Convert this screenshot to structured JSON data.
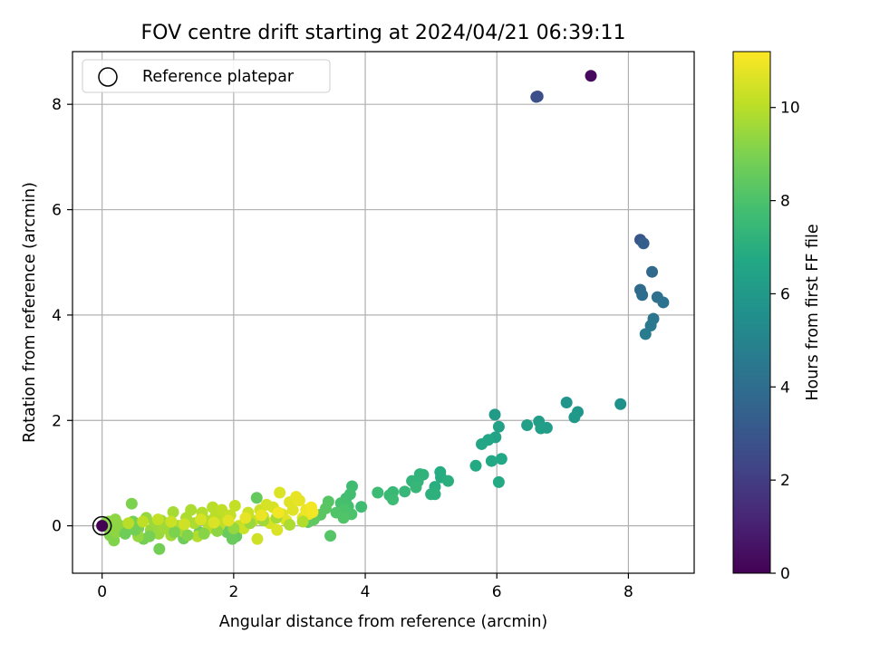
{
  "chart_data": {
    "type": "scatter",
    "title": "FOV centre drift starting at 2024/04/21 06:39:11",
    "xlabel": "Angular distance from reference (arcmin)",
    "ylabel": "Rotation from reference (arcmin)",
    "colorbar_label": "Hours from first FF file",
    "xlim": [
      -0.45,
      9.0
    ],
    "ylim": [
      -0.9,
      9.0
    ],
    "clim": [
      0,
      11.2
    ],
    "x_ticks": [
      0,
      2,
      4,
      6,
      8
    ],
    "y_ticks": [
      0,
      2,
      4,
      6,
      8
    ],
    "colorbar_ticks": [
      0,
      2,
      4,
      6,
      8,
      10
    ],
    "grid": true,
    "colormap": "viridis",
    "legend": {
      "position": "top-left",
      "entries": [
        "Reference platepar"
      ]
    },
    "reference_point": {
      "x": 0,
      "y": 0,
      "c": 0
    },
    "points": [
      {
        "x": 7.43,
        "y": 8.54,
        "c": 0.3
      },
      {
        "x": 6.62,
        "y": 8.15,
        "c": 2.6
      },
      {
        "x": 6.6,
        "y": 8.14,
        "c": 2.7
      },
      {
        "x": 8.18,
        "y": 5.43,
        "c": 3.0
      },
      {
        "x": 8.23,
        "y": 5.36,
        "c": 3.3
      },
      {
        "x": 8.36,
        "y": 4.82,
        "c": 3.8
      },
      {
        "x": 8.18,
        "y": 4.48,
        "c": 3.9
      },
      {
        "x": 8.21,
        "y": 4.38,
        "c": 4.0
      },
      {
        "x": 8.44,
        "y": 4.34,
        "c": 4.1
      },
      {
        "x": 8.53,
        "y": 4.24,
        "c": 4.2
      },
      {
        "x": 8.38,
        "y": 3.93,
        "c": 4.4
      },
      {
        "x": 8.34,
        "y": 3.8,
        "c": 4.5
      },
      {
        "x": 8.26,
        "y": 3.64,
        "c": 4.6
      },
      {
        "x": 7.88,
        "y": 2.31,
        "c": 5.6
      },
      {
        "x": 7.06,
        "y": 2.34,
        "c": 5.8
      },
      {
        "x": 7.23,
        "y": 2.16,
        "c": 5.9
      },
      {
        "x": 7.18,
        "y": 2.06,
        "c": 6.0
      },
      {
        "x": 5.97,
        "y": 2.11,
        "c": 6.1
      },
      {
        "x": 6.64,
        "y": 1.98,
        "c": 6.2
      },
      {
        "x": 6.67,
        "y": 1.85,
        "c": 6.3
      },
      {
        "x": 6.76,
        "y": 1.86,
        "c": 6.2
      },
      {
        "x": 6.46,
        "y": 1.91,
        "c": 6.3
      },
      {
        "x": 6.03,
        "y": 1.88,
        "c": 6.4
      },
      {
        "x": 5.98,
        "y": 1.68,
        "c": 6.5
      },
      {
        "x": 5.87,
        "y": 1.63,
        "c": 6.6
      },
      {
        "x": 5.77,
        "y": 1.55,
        "c": 6.6
      },
      {
        "x": 6.07,
        "y": 1.27,
        "c": 6.7
      },
      {
        "x": 5.92,
        "y": 1.23,
        "c": 6.7
      },
      {
        "x": 5.68,
        "y": 1.14,
        "c": 6.8
      },
      {
        "x": 6.03,
        "y": 0.83,
        "c": 6.8
      },
      {
        "x": 5.14,
        "y": 1.02,
        "c": 6.9
      },
      {
        "x": 5.15,
        "y": 0.92,
        "c": 6.9
      },
      {
        "x": 5.26,
        "y": 0.85,
        "c": 7.0
      },
      {
        "x": 5.06,
        "y": 0.74,
        "c": 7.0
      },
      {
        "x": 5.0,
        "y": 0.6,
        "c": 7.1
      },
      {
        "x": 5.06,
        "y": 0.6,
        "c": 7.1
      },
      {
        "x": 4.88,
        "y": 0.97,
        "c": 7.2
      },
      {
        "x": 4.83,
        "y": 0.98,
        "c": 7.2
      },
      {
        "x": 4.8,
        "y": 0.84,
        "c": 7.3
      },
      {
        "x": 4.71,
        "y": 0.85,
        "c": 7.3
      },
      {
        "x": 4.77,
        "y": 0.73,
        "c": 7.4
      },
      {
        "x": 4.6,
        "y": 0.65,
        "c": 7.4
      },
      {
        "x": 4.42,
        "y": 0.64,
        "c": 7.5
      },
      {
        "x": 4.37,
        "y": 0.58,
        "c": 7.5
      },
      {
        "x": 4.42,
        "y": 0.5,
        "c": 7.6
      },
      {
        "x": 4.19,
        "y": 0.63,
        "c": 7.6
      },
      {
        "x": 3.94,
        "y": 0.36,
        "c": 7.7
      },
      {
        "x": 3.8,
        "y": 0.75,
        "c": 7.7
      },
      {
        "x": 3.77,
        "y": 0.6,
        "c": 7.8
      },
      {
        "x": 3.71,
        "y": 0.52,
        "c": 7.8
      },
      {
        "x": 3.63,
        "y": 0.43,
        "c": 7.9
      },
      {
        "x": 3.74,
        "y": 0.37,
        "c": 7.9
      },
      {
        "x": 3.68,
        "y": 0.3,
        "c": 8.0
      },
      {
        "x": 3.79,
        "y": 0.22,
        "c": 8.0
      },
      {
        "x": 3.67,
        "y": 0.15,
        "c": 8.1
      },
      {
        "x": 3.56,
        "y": 0.25,
        "c": 8.1
      },
      {
        "x": 3.47,
        "y": -0.19,
        "c": 8.2
      },
      {
        "x": 3.44,
        "y": 0.46,
        "c": 8.2
      },
      {
        "x": 3.4,
        "y": 0.33,
        "c": 8.3
      },
      {
        "x": 3.32,
        "y": 0.21,
        "c": 8.3
      },
      {
        "x": 3.22,
        "y": 0.12,
        "c": 8.4
      },
      {
        "x": 3.13,
        "y": 0.07,
        "c": 8.4
      },
      {
        "x": 2.35,
        "y": 0.53,
        "c": 8.5
      },
      {
        "x": 2.04,
        "y": -0.2,
        "c": 8.5
      },
      {
        "x": 1.98,
        "y": -0.25,
        "c": 8.6
      },
      {
        "x": 1.9,
        "y": -0.12,
        "c": 8.6
      },
      {
        "x": 1.48,
        "y": -0.12,
        "c": 8.7
      },
      {
        "x": 1.24,
        "y": -0.24,
        "c": 8.7
      },
      {
        "x": 0.87,
        "y": -0.44,
        "c": 8.8
      },
      {
        "x": 0.63,
        "y": -0.25,
        "c": 8.8
      },
      {
        "x": 0.55,
        "y": -0.05,
        "c": 8.9
      },
      {
        "x": 0.47,
        "y": 0.08,
        "c": 8.9
      },
      {
        "x": 0.45,
        "y": 0.42,
        "c": 9.0
      },
      {
        "x": 0.3,
        "y": -0.1,
        "c": 9.0
      },
      {
        "x": 0.18,
        "y": -0.28,
        "c": 9.1
      },
      {
        "x": 0.12,
        "y": -0.18,
        "c": 9.1
      },
      {
        "x": 0.07,
        "y": -0.02,
        "c": 9.1
      },
      {
        "x": 0.05,
        "y": 0.05,
        "c": 9.2
      },
      {
        "x": 0.1,
        "y": 0.08,
        "c": 9.2
      },
      {
        "x": 0.15,
        "y": -0.06,
        "c": 9.2
      },
      {
        "x": 0.2,
        "y": 0.12,
        "c": 9.3
      },
      {
        "x": 0.22,
        "y": -0.12,
        "c": 9.3
      },
      {
        "x": 0.25,
        "y": 0.02,
        "c": 9.3
      },
      {
        "x": 0.55,
        "y": -0.2,
        "c": 9.4
      },
      {
        "x": 0.67,
        "y": 0.15,
        "c": 9.4
      },
      {
        "x": 0.74,
        "y": -0.08,
        "c": 9.4
      },
      {
        "x": 0.8,
        "y": 0.05,
        "c": 9.5
      },
      {
        "x": 0.86,
        "y": -0.15,
        "c": 9.5
      },
      {
        "x": 0.9,
        "y": 0.1,
        "c": 9.5
      },
      {
        "x": 0.95,
        "y": -0.05,
        "c": 9.6
      },
      {
        "x": 1.0,
        "y": 0.02,
        "c": 9.6
      },
      {
        "x": 1.05,
        "y": -0.18,
        "c": 9.6
      },
      {
        "x": 1.08,
        "y": 0.26,
        "c": 9.7
      },
      {
        "x": 1.15,
        "y": 0.0,
        "c": 9.7
      },
      {
        "x": 1.22,
        "y": -0.1,
        "c": 9.7
      },
      {
        "x": 1.28,
        "y": 0.15,
        "c": 9.8
      },
      {
        "x": 1.35,
        "y": 0.3,
        "c": 9.8
      },
      {
        "x": 1.4,
        "y": 0.05,
        "c": 9.8
      },
      {
        "x": 1.45,
        "y": -0.2,
        "c": 9.9
      },
      {
        "x": 1.52,
        "y": 0.25,
        "c": 9.9
      },
      {
        "x": 1.58,
        "y": 0.1,
        "c": 9.9
      },
      {
        "x": 1.62,
        "y": -0.05,
        "c": 10.0
      },
      {
        "x": 1.68,
        "y": 0.35,
        "c": 10.0
      },
      {
        "x": 1.72,
        "y": 0.18,
        "c": 10.0
      },
      {
        "x": 1.78,
        "y": 0.0,
        "c": 10.1
      },
      {
        "x": 1.82,
        "y": 0.3,
        "c": 10.1
      },
      {
        "x": 1.88,
        "y": 0.12,
        "c": 10.1
      },
      {
        "x": 1.95,
        "y": 0.2,
        "c": 10.2
      },
      {
        "x": 2.02,
        "y": 0.38,
        "c": 10.2
      },
      {
        "x": 2.08,
        "y": 0.0,
        "c": 10.2
      },
      {
        "x": 2.15,
        "y": -0.05,
        "c": 10.3
      },
      {
        "x": 2.22,
        "y": 0.25,
        "c": 10.3
      },
      {
        "x": 2.3,
        "y": 0.1,
        "c": 10.3
      },
      {
        "x": 2.36,
        "y": -0.25,
        "c": 10.4
      },
      {
        "x": 2.4,
        "y": 0.3,
        "c": 10.4
      },
      {
        "x": 2.45,
        "y": 0.18,
        "c": 10.4
      },
      {
        "x": 2.5,
        "y": 0.4,
        "c": 10.5
      },
      {
        "x": 2.55,
        "y": 0.05,
        "c": 10.5
      },
      {
        "x": 2.6,
        "y": 0.35,
        "c": 10.5
      },
      {
        "x": 2.66,
        "y": -0.08,
        "c": 10.6
      },
      {
        "x": 2.7,
        "y": 0.63,
        "c": 10.6
      },
      {
        "x": 2.74,
        "y": 0.22,
        "c": 10.6
      },
      {
        "x": 2.8,
        "y": 0.1,
        "c": 10.7
      },
      {
        "x": 2.85,
        "y": 0.45,
        "c": 10.7
      },
      {
        "x": 2.9,
        "y": 0.3,
        "c": 10.7
      },
      {
        "x": 2.95,
        "y": 0.55,
        "c": 10.8
      },
      {
        "x": 3.0,
        "y": 0.48,
        "c": 10.8
      },
      {
        "x": 3.05,
        "y": 0.15,
        "c": 10.8
      },
      {
        "x": 3.1,
        "y": 0.3,
        "c": 10.9
      },
      {
        "x": 3.14,
        "y": 0.22,
        "c": 10.9
      },
      {
        "x": 3.18,
        "y": 0.35,
        "c": 11.0
      },
      {
        "x": 3.2,
        "y": 0.26,
        "c": 11.0
      },
      {
        "x": 0.35,
        "y": -0.15,
        "c": 8.7
      },
      {
        "x": 0.5,
        "y": -0.08,
        "c": 8.8
      },
      {
        "x": 0.72,
        "y": -0.2,
        "c": 8.9
      },
      {
        "x": 1.1,
        "y": -0.12,
        "c": 9.0
      },
      {
        "x": 1.3,
        "y": -0.18,
        "c": 9.1
      },
      {
        "x": 1.55,
        "y": -0.15,
        "c": 9.2
      },
      {
        "x": 1.75,
        "y": -0.1,
        "c": 9.3
      },
      {
        "x": 2.0,
        "y": -0.05,
        "c": 9.4
      },
      {
        "x": 2.25,
        "y": 0.05,
        "c": 9.5
      },
      {
        "x": 2.45,
        "y": 0.1,
        "c": 9.6
      },
      {
        "x": 2.65,
        "y": 0.15,
        "c": 9.7
      },
      {
        "x": 2.85,
        "y": 0.02,
        "c": 9.8
      },
      {
        "x": 3.05,
        "y": 0.08,
        "c": 9.9
      },
      {
        "x": 0.4,
        "y": 0.05,
        "c": 10.0
      },
      {
        "x": 0.62,
        "y": 0.08,
        "c": 10.1
      },
      {
        "x": 0.85,
        "y": 0.12,
        "c": 10.2
      },
      {
        "x": 1.05,
        "y": 0.08,
        "c": 10.3
      },
      {
        "x": 1.25,
        "y": 0.03,
        "c": 10.4
      },
      {
        "x": 1.5,
        "y": 0.12,
        "c": 10.5
      },
      {
        "x": 1.7,
        "y": 0.06,
        "c": 10.6
      },
      {
        "x": 1.92,
        "y": 0.1,
        "c": 10.7
      },
      {
        "x": 2.18,
        "y": 0.15,
        "c": 10.8
      },
      {
        "x": 2.42,
        "y": 0.2,
        "c": 10.9
      },
      {
        "x": 2.68,
        "y": 0.25,
        "c": 11.0
      }
    ]
  }
}
